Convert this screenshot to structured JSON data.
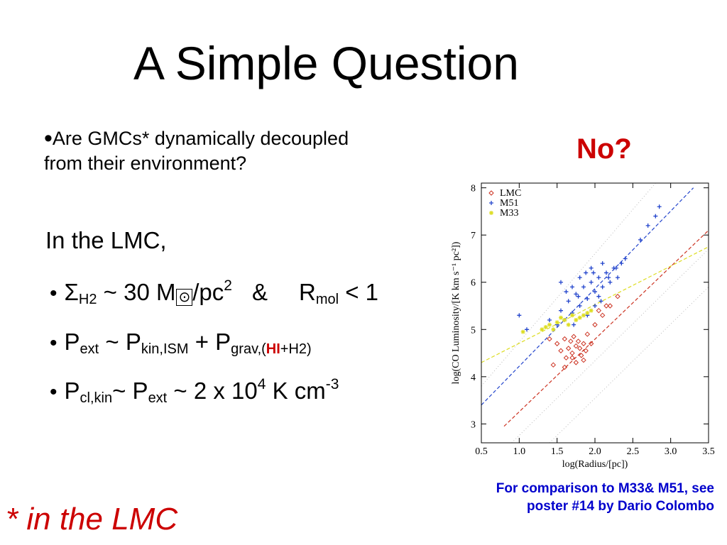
{
  "slide": {
    "title": "A Simple Question",
    "question_bullet": "•",
    "question_line1": "Are GMCs* dynamically decoupled",
    "question_line2": "from their environment?",
    "answer": "No?",
    "intro": "In the LMC,",
    "bullet": "•",
    "eq1": {
      "sigma": "Σ",
      "sigma_sub": "H2",
      "middle": " ~ 30 M",
      "sun": "⊙",
      "slash": "/pc",
      "exp": "2",
      "amp": "&",
      "r": "R",
      "r_sub": "mol",
      "tail": " < 1"
    },
    "eq2": {
      "p": "P",
      "p_sub": "ext",
      "mid": " ~ P",
      "kin_sub": "kin,ISM",
      "plus": " + P",
      "grav_sub_a": "grav,(",
      "grav_sub_hi": "HI",
      "grav_sub_b": "+H2)"
    },
    "eq3": {
      "p": "P",
      "p_sub": "cl,kin",
      "mid": "~ P",
      "ext_sub": "ext",
      "tail": " ~ 2 x 10",
      "exp": "4",
      "unit": " K cm",
      "unit_exp": "-3"
    },
    "footnote_left": "* in the LMC",
    "footnote_right": "For comparison to M33& M51, see poster #14 by Dario Colombo"
  },
  "chart_data": {
    "type": "scatter",
    "xlabel": "log(Radius/[pc])",
    "ylabel": "log(CO Luminosity/[K km s⁻¹ pc²])",
    "xlim": [
      0.5,
      3.5
    ],
    "ylim": [
      2.6,
      8.1
    ],
    "xticks": [
      0.5,
      1.0,
      1.5,
      2.0,
      2.5,
      3.0,
      3.5
    ],
    "xtick_labels": [
      "0.5",
      "1.0",
      "1.5",
      "2.0",
      "2.5",
      "3.0",
      "3.5"
    ],
    "yticks": [
      3,
      4,
      5,
      6,
      7,
      8
    ],
    "ytick_labels": [
      "3",
      "4",
      "5",
      "6",
      "7",
      "8"
    ],
    "legend_position": "top-left",
    "series": [
      {
        "name": "LMC",
        "color": "#cc3322",
        "marker": "diamond",
        "points": [
          [
            1.5,
            4.7
          ],
          [
            1.55,
            4.55
          ],
          [
            1.6,
            4.8
          ],
          [
            1.62,
            4.4
          ],
          [
            1.65,
            4.6
          ],
          [
            1.68,
            4.75
          ],
          [
            1.7,
            4.5
          ],
          [
            1.72,
            4.85
          ],
          [
            1.75,
            4.65
          ],
          [
            1.78,
            4.75
          ],
          [
            1.8,
            4.6
          ],
          [
            1.82,
            4.45
          ],
          [
            1.85,
            4.7
          ],
          [
            1.85,
            4.35
          ],
          [
            1.88,
            4.55
          ],
          [
            1.75,
            4.3
          ],
          [
            1.9,
            4.9
          ],
          [
            2.0,
            5.1
          ],
          [
            2.05,
            5.4
          ],
          [
            2.1,
            5.3
          ],
          [
            2.3,
            5.7
          ],
          [
            1.4,
            4.8
          ],
          [
            1.45,
            4.25
          ],
          [
            1.6,
            4.2
          ],
          [
            1.7,
            4.4
          ],
          [
            1.95,
            4.7
          ],
          [
            2.15,
            5.5
          ],
          [
            2.2,
            5.5
          ]
        ]
      },
      {
        "name": "M51",
        "color": "#2244cc",
        "marker": "plus",
        "points": [
          [
            1.55,
            5.4
          ],
          [
            1.6,
            5.2
          ],
          [
            1.65,
            5.6
          ],
          [
            1.7,
            5.35
          ],
          [
            1.75,
            5.75
          ],
          [
            1.8,
            5.5
          ],
          [
            1.85,
            5.9
          ],
          [
            1.9,
            5.65
          ],
          [
            1.95,
            6.0
          ],
          [
            2.0,
            5.8
          ],
          [
            2.05,
            6.1
          ],
          [
            2.1,
            5.9
          ],
          [
            2.15,
            6.2
          ],
          [
            2.2,
            6.0
          ],
          [
            2.25,
            6.3
          ],
          [
            2.3,
            6.1
          ],
          [
            2.35,
            6.4
          ],
          [
            1.7,
            5.9
          ],
          [
            1.8,
            6.1
          ],
          [
            1.9,
            5.3
          ],
          [
            2.0,
            5.5
          ],
          [
            2.1,
            6.4
          ],
          [
            1.62,
            5.8
          ],
          [
            1.72,
            5.1
          ],
          [
            1.88,
            6.2
          ],
          [
            2.08,
            5.6
          ],
          [
            2.18,
            6.1
          ],
          [
            2.28,
            6.3
          ],
          [
            2.4,
            6.5
          ],
          [
            2.6,
            6.9
          ],
          [
            2.7,
            7.2
          ],
          [
            2.8,
            7.4
          ],
          [
            2.85,
            7.6
          ],
          [
            1.0,
            5.3
          ],
          [
            1.1,
            5.0
          ],
          [
            1.4,
            5.2
          ],
          [
            1.55,
            6.0
          ],
          [
            1.95,
            6.3
          ],
          [
            1.5,
            5.1
          ],
          [
            2.05,
            5.7
          ],
          [
            1.78,
            5.7
          ],
          [
            1.98,
            6.2
          ]
        ]
      },
      {
        "name": "M33",
        "color": "#dddd22",
        "marker": "asterisk",
        "points": [
          [
            1.3,
            5.0
          ],
          [
            1.4,
            5.1
          ],
          [
            1.5,
            5.15
          ],
          [
            1.6,
            5.2
          ],
          [
            1.7,
            5.3
          ],
          [
            1.8,
            5.25
          ],
          [
            1.9,
            5.35
          ],
          [
            1.45,
            5.0
          ],
          [
            1.55,
            5.25
          ],
          [
            1.65,
            5.1
          ],
          [
            1.75,
            5.2
          ],
          [
            1.85,
            5.3
          ],
          [
            1.35,
            5.05
          ],
          [
            1.05,
            4.95
          ],
          [
            1.95,
            5.4
          ]
        ]
      }
    ],
    "fit_lines": [
      {
        "color": "#2244cc",
        "style": "dashed",
        "from": [
          0.5,
          3.4
        ],
        "to": [
          3.3,
          8.0
        ]
      },
      {
        "color": "#cc3322",
        "style": "dashed",
        "from": [
          0.8,
          2.95
        ],
        "to": [
          3.5,
          7.1
        ]
      },
      {
        "color": "#dddd22",
        "style": "dashed",
        "from": [
          0.5,
          4.3
        ],
        "to": [
          3.5,
          6.75
        ]
      }
    ],
    "reference_lines": [
      {
        "color": "#bbbbbb",
        "style": "dotted",
        "from": [
          0.9,
          2.6
        ],
        "to": [
          3.5,
          6.7
        ]
      },
      {
        "color": "#bbbbbb",
        "style": "dotted",
        "from": [
          0.5,
          3.8
        ],
        "to": [
          2.8,
          8.1
        ]
      },
      {
        "color": "#bbbbbb",
        "style": "dotted",
        "from": [
          1.4,
          2.6
        ],
        "to": [
          3.5,
          5.9
        ]
      }
    ]
  }
}
